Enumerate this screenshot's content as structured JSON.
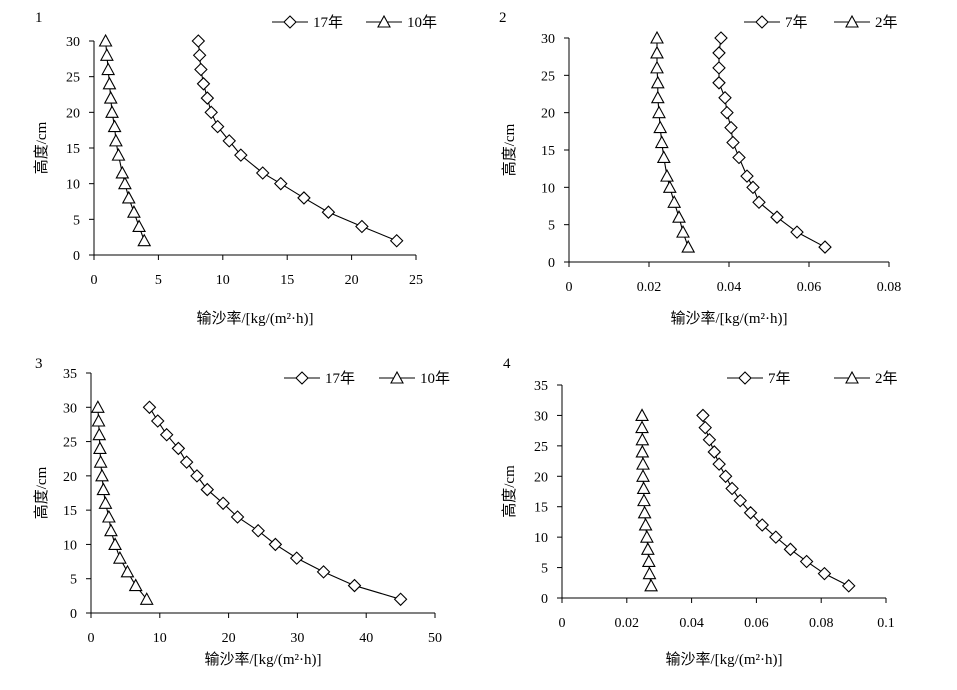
{
  "chart_data": [
    {
      "type": "line",
      "panel_label": "1",
      "xlabel": "输沙率/[kg/(m²·h)]",
      "ylabel": "高度/cm",
      "xlim": [
        0,
        25
      ],
      "ylim": [
        0,
        30
      ],
      "xticks": [
        0,
        5,
        10,
        15,
        20,
        25
      ],
      "xtick_labels": [
        "0",
        "5",
        "10",
        "15",
        "20",
        "25"
      ],
      "yticks": [
        0,
        5,
        10,
        15,
        20,
        25,
        30
      ],
      "ytick_labels": [
        "0",
        "5",
        "10",
        "15",
        "20",
        "25",
        "30"
      ],
      "grid": false,
      "legend_position": "top-right",
      "series": [
        {
          "name": "17年",
          "marker": "diamond",
          "x": [
            23.5,
            20.8,
            18.2,
            16.3,
            14.5,
            13.1,
            11.4,
            10.5,
            9.6,
            9.1,
            8.8,
            8.5,
            8.3,
            8.2,
            8.1
          ],
          "y": [
            2,
            4,
            6,
            8,
            10,
            11.5,
            14,
            16,
            18,
            20,
            22,
            24,
            26,
            28,
            30
          ]
        },
        {
          "name": "10年",
          "marker": "triangle",
          "x": [
            3.9,
            3.5,
            3.1,
            2.7,
            2.4,
            2.2,
            1.9,
            1.7,
            1.6,
            1.4,
            1.3,
            1.2,
            1.1,
            1.0,
            0.9
          ],
          "y": [
            2,
            4,
            6,
            8,
            10,
            11.5,
            14,
            16,
            18,
            20,
            22,
            24,
            26,
            28,
            30
          ]
        }
      ]
    },
    {
      "type": "line",
      "panel_label": "2",
      "xlabel": "输沙率/[kg/(m²·h)]",
      "ylabel": "高度/cm",
      "xlim": [
        0,
        0.08
      ],
      "ylim": [
        0,
        30
      ],
      "xticks": [
        0,
        0.02,
        0.04,
        0.06,
        0.08
      ],
      "xtick_labels": [
        "0",
        "0.02",
        "0.04",
        "0.06",
        "0.08"
      ],
      "yticks": [
        0,
        5,
        10,
        15,
        20,
        25,
        30
      ],
      "ytick_labels": [
        "0",
        "5",
        "10",
        "15",
        "20",
        "25",
        "30"
      ],
      "grid": false,
      "legend_position": "top-right",
      "series": [
        {
          "name": "7年",
          "marker": "diamond",
          "x": [
            0.064,
            0.057,
            0.052,
            0.0475,
            0.046,
            0.0445,
            0.0425,
            0.041,
            0.0405,
            0.0395,
            0.039,
            0.0375,
            0.0375,
            0.0375,
            0.038
          ],
          "y": [
            2,
            4,
            6,
            8,
            10,
            11.5,
            14,
            16,
            18,
            20,
            22,
            24,
            26,
            28,
            30
          ]
        },
        {
          "name": "2年",
          "marker": "triangle",
          "x": [
            0.0298,
            0.0285,
            0.0275,
            0.0263,
            0.0252,
            0.0245,
            0.0237,
            0.0232,
            0.0228,
            0.0225,
            0.0222,
            0.0222,
            0.022,
            0.022,
            0.022
          ],
          "y": [
            2,
            4,
            6,
            8,
            10,
            11.5,
            14,
            16,
            18,
            20,
            22,
            24,
            26,
            28,
            30
          ]
        }
      ]
    },
    {
      "type": "line",
      "panel_label": "3",
      "xlabel": "输沙率/[kg/(m²·h)]",
      "ylabel": "高度/cm",
      "xlim": [
        0,
        50
      ],
      "ylim": [
        0,
        35
      ],
      "xticks": [
        0,
        10,
        20,
        30,
        40,
        50
      ],
      "xtick_labels": [
        "0",
        "10",
        "20",
        "30",
        "40",
        "50"
      ],
      "yticks": [
        0,
        5,
        10,
        15,
        20,
        25,
        30,
        35
      ],
      "ytick_labels": [
        "0",
        "5",
        "10",
        "15",
        "20",
        "25",
        "30",
        "35"
      ],
      "grid": false,
      "legend_position": "top-right",
      "series": [
        {
          "name": "17年",
          "marker": "diamond",
          "x": [
            45,
            38.3,
            33.8,
            29.9,
            26.8,
            24.3,
            21.3,
            19.2,
            16.9,
            15.4,
            13.9,
            12.7,
            11,
            9.7,
            8.5
          ],
          "y": [
            2,
            4,
            6,
            8,
            10,
            12,
            14,
            16,
            18,
            20,
            22,
            24,
            26,
            28,
            30
          ]
        },
        {
          "name": "10年",
          "marker": "triangle",
          "x": [
            8.1,
            6.5,
            5.3,
            4.2,
            3.5,
            2.9,
            2.6,
            2.1,
            1.8,
            1.6,
            1.4,
            1.3,
            1.2,
            1.1,
            1.0
          ],
          "y": [
            2,
            4,
            6,
            8,
            10,
            12,
            14,
            16,
            18,
            20,
            22,
            24,
            26,
            28,
            30
          ]
        }
      ]
    },
    {
      "type": "line",
      "panel_label": "4",
      "xlabel": "输沙率/[kg/(m²·h)]",
      "ylabel": "高度/cm",
      "xlim": [
        0,
        0.1
      ],
      "ylim": [
        0,
        35
      ],
      "xticks": [
        0,
        0.02,
        0.04,
        0.06,
        0.08,
        0.1
      ],
      "xtick_labels": [
        "0",
        "0.02",
        "0.04",
        "0.06",
        "0.08",
        "0.1"
      ],
      "yticks": [
        0,
        5,
        10,
        15,
        20,
        25,
        30,
        35
      ],
      "ytick_labels": [
        "0",
        "5",
        "10",
        "15",
        "20",
        "25",
        "30",
        "35"
      ],
      "grid": false,
      "legend_position": "top-right",
      "series": [
        {
          "name": "7年",
          "marker": "diamond",
          "x": [
            0.0885,
            0.081,
            0.0755,
            0.0705,
            0.066,
            0.0618,
            0.0582,
            0.055,
            0.0525,
            0.0505,
            0.0485,
            0.047,
            0.0455,
            0.0442,
            0.0435
          ],
          "y": [
            2,
            4,
            6,
            8,
            10,
            12,
            14,
            16,
            18,
            20,
            22,
            24,
            26,
            28,
            30
          ]
        },
        {
          "name": "2年",
          "marker": "triangle",
          "x": [
            0.0275,
            0.027,
            0.0268,
            0.0265,
            0.0262,
            0.0258,
            0.0255,
            0.0253,
            0.0252,
            0.025,
            0.025,
            0.0248,
            0.0248,
            0.0247,
            0.0247
          ],
          "y": [
            2,
            4,
            6,
            8,
            10,
            12,
            14,
            16,
            18,
            20,
            22,
            24,
            26,
            28,
            30
          ]
        }
      ]
    }
  ]
}
